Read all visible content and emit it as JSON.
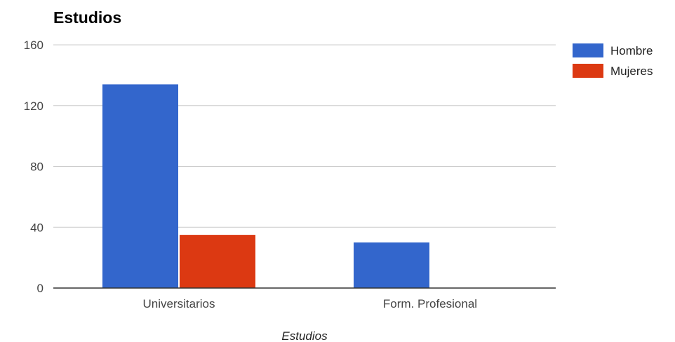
{
  "chart_data": {
    "type": "bar",
    "title": "Estudios",
    "xlabel": "Estudios",
    "ylabel": "",
    "categories": [
      "Universitarios",
      "Form. Profesional"
    ],
    "series": [
      {
        "name": "Hombre",
        "values": [
          134,
          30
        ],
        "color": "#3366cc"
      },
      {
        "name": "Mujeres",
        "values": [
          35,
          0
        ],
        "color": "#dc3912"
      }
    ],
    "ylim": [
      0,
      160
    ],
    "yticks": [
      0,
      40,
      80,
      120,
      160
    ],
    "grid": true,
    "legend": "right"
  }
}
